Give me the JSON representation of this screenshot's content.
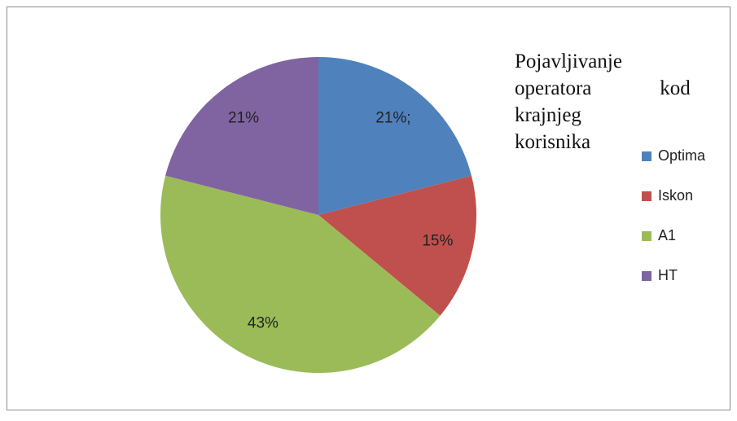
{
  "chart_data": {
    "type": "pie",
    "title": "Pojavljivanje operatora kod krajnjeg korisnika",
    "categories": [
      "Optima",
      "Iskon",
      "A1",
      "HT"
    ],
    "values": [
      21,
      15,
      43,
      21
    ],
    "value_labels": [
      "21%;",
      "15%",
      "43%",
      "21%"
    ],
    "colors": [
      "#4f81bd",
      "#c0504d",
      "#9bbb59",
      "#8064a2"
    ],
    "legend": "right"
  }
}
